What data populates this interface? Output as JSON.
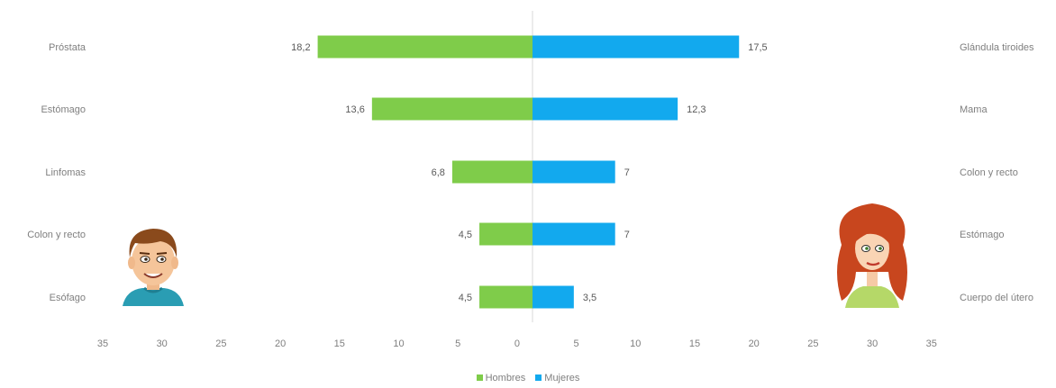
{
  "chart_data": {
    "type": "bar",
    "orientation": "horizontal-diverging",
    "categories_left": [
      "Próstata",
      "Estómago",
      "Linfomas",
      "Colon y recto",
      "Esófago"
    ],
    "categories_right": [
      "Glándula tiroides",
      "Mama",
      "Colon y recto",
      "Estómago",
      "Cuerpo del útero"
    ],
    "series": [
      {
        "name": "Hombres",
        "color": "#7fcc4a",
        "values": [
          18.2,
          13.6,
          6.8,
          4.5,
          4.5
        ],
        "labels": [
          "18,2",
          "13,6",
          "6,8",
          "4,5",
          "4,5"
        ]
      },
      {
        "name": "Mujeres",
        "color": "#12a9ee",
        "values": [
          17.5,
          12.3,
          7,
          7,
          3.5
        ],
        "labels": [
          "17,5",
          "12,3",
          "7",
          "7",
          "3,5"
        ]
      }
    ],
    "xlim": [
      -35,
      35
    ],
    "xticks": [
      "35",
      "30",
      "25",
      "20",
      "15",
      "10",
      "5",
      "0",
      "5",
      "10",
      "15",
      "20",
      "25",
      "30",
      "35"
    ],
    "grid": false,
    "legend_position": "bottom"
  },
  "illustrations": {
    "left": "man-cartoon-icon",
    "right": "woman-cartoon-icon"
  }
}
